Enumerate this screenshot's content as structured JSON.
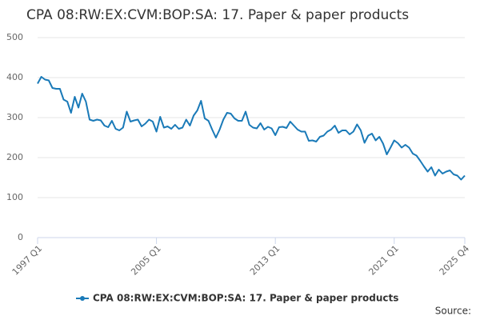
{
  "chart_data": {
    "type": "line",
    "title": "CPA 08:RW:EX:CVM:BOP:SA: 17. Paper & paper products",
    "categories": [
      "1997 Q1",
      null,
      null,
      null,
      null,
      null,
      null,
      null,
      null,
      null,
      null,
      null,
      null,
      null,
      null,
      null,
      null,
      null,
      null,
      null,
      null,
      null,
      null,
      null,
      null,
      null,
      null,
      null,
      null,
      null,
      null,
      null,
      "2005 Q1",
      null,
      null,
      null,
      null,
      null,
      null,
      null,
      null,
      null,
      null,
      null,
      null,
      null,
      null,
      null,
      null,
      null,
      null,
      null,
      null,
      null,
      null,
      null,
      null,
      null,
      null,
      null,
      null,
      null,
      null,
      null,
      "2013 Q1",
      null,
      null,
      null,
      null,
      null,
      null,
      null,
      null,
      null,
      null,
      null,
      null,
      null,
      null,
      null,
      null,
      null,
      null,
      null,
      null,
      null,
      null,
      null,
      null,
      null,
      null,
      null,
      null,
      null,
      null,
      null,
      "2021 Q1",
      null,
      null,
      null,
      null,
      null,
      null,
      null,
      null,
      null,
      null,
      null,
      null,
      null,
      null,
      null,
      null,
      null,
      null,
      "2025 Q4"
    ],
    "series": [
      {
        "name": "CPA 08:RW:EX:CVM:BOP:SA: 17. Paper & paper products",
        "color": "#1a7ab8",
        "values": [
          385,
          402,
          395,
          393,
          374,
          372,
          372,
          345,
          340,
          312,
          352,
          325,
          360,
          340,
          295,
          292,
          295,
          293,
          280,
          276,
          292,
          272,
          268,
          275,
          315,
          290,
          293,
          295,
          278,
          285,
          295,
          290,
          265,
          302,
          275,
          278,
          272,
          282,
          272,
          275,
          295,
          280,
          305,
          318,
          342,
          298,
          292,
          270,
          250,
          270,
          295,
          312,
          310,
          298,
          292,
          292,
          315,
          282,
          275,
          273,
          286,
          270,
          277,
          273,
          256,
          276,
          277,
          274,
          290,
          280,
          270,
          265,
          265,
          242,
          243,
          240,
          252,
          255,
          265,
          270,
          280,
          262,
          268,
          268,
          258,
          265,
          283,
          268,
          237,
          255,
          260,
          243,
          252,
          235,
          208,
          225,
          243,
          236,
          225,
          232,
          225,
          210,
          205,
          192,
          178,
          165,
          176,
          155,
          170,
          160,
          165,
          168,
          158,
          155,
          145,
          155
        ]
      }
    ],
    "ylim": [
      0,
      500
    ],
    "yticks": [
      0,
      100,
      200,
      300,
      400,
      500
    ],
    "grid": true,
    "legend": "bottom",
    "source": "Source:"
  }
}
